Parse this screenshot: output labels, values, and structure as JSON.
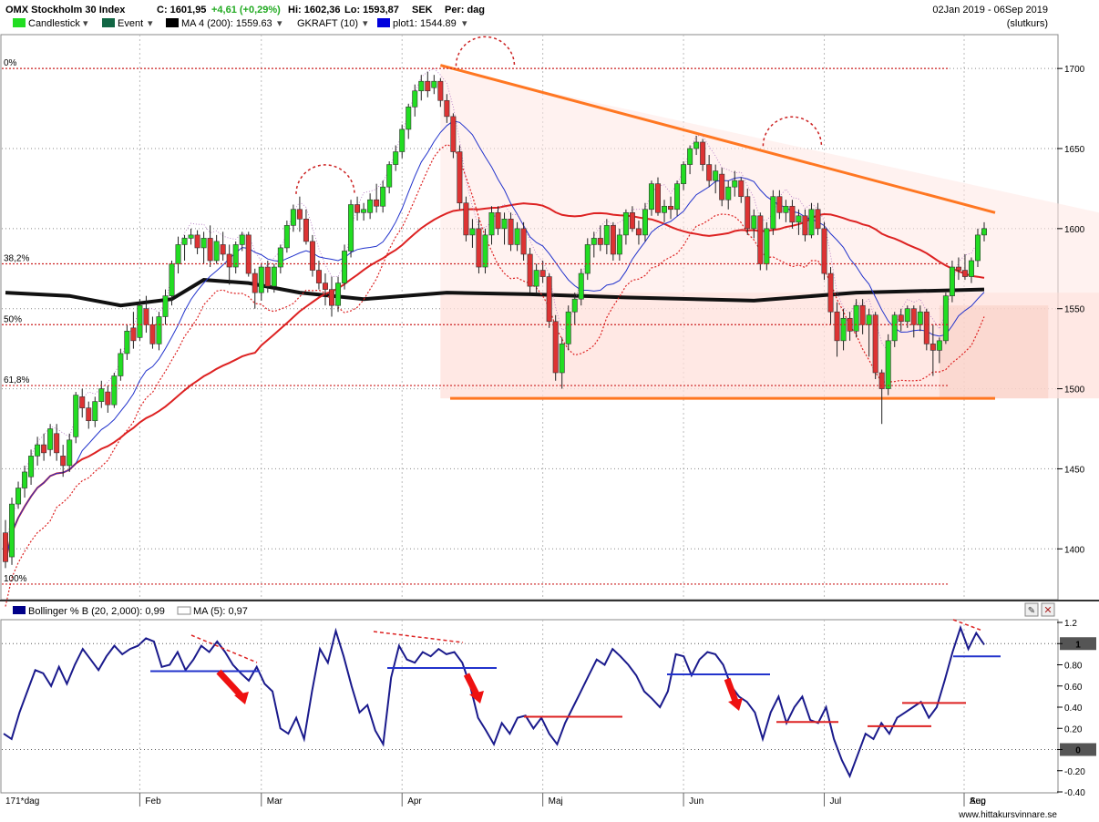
{
  "header": {
    "title": "OMX Stockholm 30 Index",
    "close": "C: 1601,95",
    "change": "+4,61 (+0,29%)",
    "high": "Hi: 1602,36",
    "low": "Lo: 1593,87",
    "currency": "SEK",
    "period": "Per: dag",
    "date_range": "02Jan 2019 - 06Sep 2019",
    "price_type": "(slutkurs)"
  },
  "legend": [
    {
      "label": "Candlestick",
      "color": "#22dd22"
    },
    {
      "label": "Event",
      "color": "#116644"
    },
    {
      "label": "MA 4 (200): 1559.63",
      "color": "#000000"
    },
    {
      "label": "GKRAFT (10)",
      "color": null
    },
    {
      "label": "plot1: 1544.89",
      "color": "#0000dd"
    }
  ],
  "fib_labels": [
    "0%",
    "38,2%",
    "50%",
    "61,8%",
    "100%"
  ],
  "price_axis": {
    "ticks": [
      "1700",
      "1650",
      "1600",
      "1550",
      "1500",
      "1450",
      "1400"
    ],
    "min": 1370,
    "max": 1720
  },
  "indicator": {
    "title": "Bollinger % B (20, 2,000): 0,99",
    "ma_label": "MA (5): 0,97",
    "ticks": [
      "1.2",
      "1",
      "0.80",
      "0.60",
      "0.40",
      "0.20",
      "0",
      "-0.20",
      "-0.40"
    ],
    "highlight_ticks": [
      "1",
      "0"
    ]
  },
  "time_axis": {
    "corner": "171*dag",
    "months": [
      "Feb",
      "Mar",
      "Apr",
      "Maj",
      "Jun",
      "Jul",
      "Aug",
      "Sep"
    ]
  },
  "watermark": "www.hittakursvinnare.se",
  "colors": {
    "up": "#22dd22",
    "down": "#dd3333",
    "ma200": "#111111",
    "ma_red": "#dd2222",
    "blue": "#2233cc",
    "trend": "#ff7722",
    "ind": "#1a1a8c"
  },
  "chart_data": {
    "type": "candlestick",
    "price_range": [
      1370,
      1720
    ],
    "fib_levels": [
      1700,
      1578,
      1540,
      1502,
      1378
    ],
    "support_level": 1494,
    "trendline": [
      [
        1,
        1702
      ],
      [
        171,
        1610
      ]
    ],
    "candles": [
      [
        1410,
        1418,
        1388,
        1392
      ],
      [
        1395,
        1432,
        1390,
        1428
      ],
      [
        1428,
        1442,
        1425,
        1438
      ],
      [
        1438,
        1452,
        1432,
        1448
      ],
      [
        1445,
        1462,
        1440,
        1458
      ],
      [
        1458,
        1470,
        1452,
        1465
      ],
      [
        1465,
        1472,
        1455,
        1460
      ],
      [
        1462,
        1478,
        1458,
        1475
      ],
      [
        1472,
        1478,
        1455,
        1460
      ],
      [
        1458,
        1465,
        1445,
        1452
      ],
      [
        1452,
        1472,
        1448,
        1468
      ],
      [
        1470,
        1498,
        1466,
        1496
      ],
      [
        1495,
        1500,
        1482,
        1488
      ],
      [
        1488,
        1492,
        1475,
        1480
      ],
      [
        1480,
        1495,
        1476,
        1492
      ],
      [
        1492,
        1505,
        1488,
        1500
      ],
      [
        1498,
        1502,
        1485,
        1490
      ],
      [
        1490,
        1510,
        1488,
        1508
      ],
      [
        1508,
        1525,
        1505,
        1522
      ],
      [
        1522,
        1540,
        1518,
        1536
      ],
      [
        1538,
        1548,
        1525,
        1530
      ],
      [
        1532,
        1556,
        1530,
        1552
      ],
      [
        1550,
        1558,
        1535,
        1540
      ],
      [
        1540,
        1545,
        1525,
        1528
      ],
      [
        1528,
        1548,
        1524,
        1545
      ],
      [
        1545,
        1562,
        1540,
        1558
      ],
      [
        1558,
        1580,
        1552,
        1578
      ],
      [
        1578,
        1595,
        1572,
        1590
      ],
      [
        1590,
        1596,
        1580,
        1594
      ],
      [
        1594,
        1600,
        1590,
        1596
      ],
      [
        1596,
        1599,
        1584,
        1588
      ],
      [
        1588,
        1598,
        1578,
        1594
      ],
      [
        1594,
        1602,
        1576,
        1580
      ],
      [
        1580,
        1596,
        1578,
        1592
      ],
      [
        1590,
        1598,
        1580,
        1584
      ],
      [
        1584,
        1590,
        1565,
        1576
      ],
      [
        1576,
        1592,
        1572,
        1590
      ],
      [
        1590,
        1598,
        1586,
        1596
      ],
      [
        1596,
        1598,
        1570,
        1572
      ],
      [
        1572,
        1575,
        1550,
        1560
      ],
      [
        1560,
        1578,
        1555,
        1576
      ],
      [
        1576,
        1580,
        1560,
        1564
      ],
      [
        1564,
        1578,
        1560,
        1576
      ],
      [
        1576,
        1590,
        1572,
        1588
      ],
      [
        1588,
        1605,
        1585,
        1602
      ],
      [
        1602,
        1615,
        1598,
        1612
      ],
      [
        1612,
        1620,
        1598,
        1606
      ],
      [
        1606,
        1612,
        1590,
        1592
      ],
      [
        1592,
        1596,
        1570,
        1574
      ],
      [
        1574,
        1580,
        1562,
        1566
      ],
      [
        1566,
        1572,
        1552,
        1562
      ],
      [
        1562,
        1570,
        1545,
        1552
      ],
      [
        1552,
        1570,
        1548,
        1566
      ],
      [
        1566,
        1590,
        1562,
        1586
      ],
      [
        1586,
        1618,
        1582,
        1615
      ],
      [
        1615,
        1620,
        1605,
        1610
      ],
      [
        1610,
        1616,
        1605,
        1612
      ],
      [
        1610,
        1622,
        1606,
        1618
      ],
      [
        1618,
        1628,
        1610,
        1614
      ],
      [
        1614,
        1630,
        1610,
        1626
      ],
      [
        1626,
        1642,
        1622,
        1640
      ],
      [
        1640,
        1652,
        1636,
        1648
      ],
      [
        1648,
        1665,
        1644,
        1662
      ],
      [
        1662,
        1678,
        1656,
        1676
      ],
      [
        1676,
        1690,
        1670,
        1686
      ],
      [
        1686,
        1696,
        1680,
        1692
      ],
      [
        1692,
        1698,
        1682,
        1686
      ],
      [
        1688,
        1696,
        1684,
        1692
      ],
      [
        1692,
        1694,
        1676,
        1680
      ],
      [
        1680,
        1684,
        1666,
        1670
      ],
      [
        1670,
        1672,
        1644,
        1648
      ],
      [
        1648,
        1652,
        1612,
        1616
      ],
      [
        1616,
        1620,
        1592,
        1596
      ],
      [
        1596,
        1606,
        1588,
        1600
      ],
      [
        1600,
        1606,
        1572,
        1576
      ],
      [
        1576,
        1600,
        1572,
        1596
      ],
      [
        1596,
        1614,
        1590,
        1610
      ],
      [
        1610,
        1614,
        1596,
        1600
      ],
      [
        1600,
        1610,
        1590,
        1606
      ],
      [
        1606,
        1610,
        1586,
        1590
      ],
      [
        1590,
        1604,
        1586,
        1600
      ],
      [
        1600,
        1604,
        1580,
        1584
      ],
      [
        1584,
        1588,
        1560,
        1564
      ],
      [
        1564,
        1578,
        1560,
        1574
      ],
      [
        1574,
        1580,
        1566,
        1570
      ],
      [
        1570,
        1572,
        1538,
        1542
      ],
      [
        1542,
        1546,
        1505,
        1510
      ],
      [
        1510,
        1532,
        1500,
        1528
      ],
      [
        1528,
        1552,
        1524,
        1548
      ],
      [
        1548,
        1560,
        1540,
        1556
      ],
      [
        1556,
        1575,
        1552,
        1572
      ],
      [
        1572,
        1594,
        1568,
        1590
      ],
      [
        1590,
        1598,
        1582,
        1594
      ],
      [
        1594,
        1602,
        1586,
        1590
      ],
      [
        1590,
        1606,
        1584,
        1602
      ],
      [
        1602,
        1604,
        1580,
        1584
      ],
      [
        1584,
        1600,
        1580,
        1596
      ],
      [
        1596,
        1612,
        1590,
        1610
      ],
      [
        1610,
        1614,
        1598,
        1600
      ],
      [
        1600,
        1605,
        1590,
        1596
      ],
      [
        1596,
        1616,
        1592,
        1612
      ],
      [
        1612,
        1630,
        1608,
        1628
      ],
      [
        1628,
        1632,
        1608,
        1610
      ],
      [
        1610,
        1618,
        1604,
        1614
      ],
      [
        1614,
        1620,
        1606,
        1612
      ],
      [
        1612,
        1630,
        1608,
        1628
      ],
      [
        1628,
        1642,
        1624,
        1640
      ],
      [
        1640,
        1652,
        1634,
        1650
      ],
      [
        1650,
        1658,
        1646,
        1654
      ],
      [
        1654,
        1656,
        1636,
        1640
      ],
      [
        1640,
        1646,
        1626,
        1630
      ],
      [
        1630,
        1640,
        1622,
        1636
      ],
      [
        1634,
        1638,
        1614,
        1618
      ],
      [
        1618,
        1630,
        1612,
        1626
      ],
      [
        1626,
        1636,
        1620,
        1630
      ],
      [
        1630,
        1632,
        1616,
        1620
      ],
      [
        1620,
        1625,
        1596,
        1600
      ],
      [
        1600,
        1612,
        1594,
        1608
      ],
      [
        1608,
        1610,
        1574,
        1578
      ],
      [
        1578,
        1604,
        1574,
        1600
      ],
      [
        1600,
        1624,
        1596,
        1620
      ],
      [
        1620,
        1624,
        1606,
        1610
      ],
      [
        1610,
        1618,
        1604,
        1614
      ],
      [
        1614,
        1618,
        1600,
        1604
      ],
      [
        1604,
        1612,
        1596,
        1608
      ],
      [
        1608,
        1612,
        1592,
        1596
      ],
      [
        1596,
        1616,
        1594,
        1612
      ],
      [
        1612,
        1616,
        1596,
        1600
      ],
      [
        1600,
        1604,
        1568,
        1572
      ],
      [
        1572,
        1576,
        1540,
        1548
      ],
      [
        1548,
        1554,
        1520,
        1530
      ],
      [
        1530,
        1550,
        1524,
        1544
      ],
      [
        1544,
        1548,
        1530,
        1536
      ],
      [
        1536,
        1556,
        1532,
        1552
      ],
      [
        1552,
        1556,
        1534,
        1540
      ],
      [
        1540,
        1550,
        1520,
        1546
      ],
      [
        1546,
        1548,
        1506,
        1510
      ],
      [
        1510,
        1512,
        1478,
        1500
      ],
      [
        1500,
        1534,
        1496,
        1530
      ],
      [
        1530,
        1548,
        1526,
        1546
      ],
      [
        1546,
        1550,
        1536,
        1542
      ],
      [
        1542,
        1552,
        1538,
        1550
      ],
      [
        1550,
        1552,
        1532,
        1540
      ],
      [
        1540,
        1552,
        1536,
        1548
      ],
      [
        1548,
        1550,
        1524,
        1528
      ],
      [
        1528,
        1540,
        1508,
        1524
      ],
      [
        1524,
        1532,
        1516,
        1530
      ],
      [
        1530,
        1560,
        1528,
        1558
      ],
      [
        1558,
        1580,
        1554,
        1576
      ],
      [
        1576,
        1582,
        1568,
        1574
      ],
      [
        1574,
        1584,
        1568,
        1570
      ],
      [
        1570,
        1582,
        1566,
        1580
      ],
      [
        1580,
        1600,
        1576,
        1596
      ],
      [
        1596,
        1604,
        1592,
        1600
      ]
    ],
    "moving_averages": [
      {
        "name": "MA 4 (200)",
        "values": [
          [
            1,
            1560
          ],
          [
            40,
            1558
          ],
          [
            70,
            1552
          ],
          [
            100,
            1556
          ],
          [
            120,
            1568
          ],
          [
            150,
            1566
          ],
          [
            180,
            1560
          ],
          [
            220,
            1556
          ],
          [
            270,
            1560
          ],
          [
            320,
            1559
          ],
          [
            380,
            1557
          ],
          [
            460,
            1555
          ],
          [
            520,
            1560
          ],
          [
            600,
            1562
          ]
        ]
      },
      {
        "name": "plot1",
        "values": [
          [
            1,
            1544.89
          ]
        ]
      }
    ],
    "indicator_values": [
      0.15,
      0.1,
      0.35,
      0.55,
      0.75,
      0.72,
      0.6,
      0.78,
      0.62,
      0.8,
      0.95,
      0.85,
      0.75,
      0.88,
      0.98,
      0.9,
      0.95,
      0.98,
      1.05,
      1.02,
      0.78,
      0.8,
      0.92,
      0.75,
      0.85,
      0.98,
      0.92,
      1.02,
      0.92,
      0.8,
      0.72,
      0.65,
      0.78,
      0.62,
      0.55,
      0.2,
      0.15,
      0.3,
      0.1,
      0.55,
      0.95,
      0.82,
      1.12,
      0.88,
      0.6,
      0.35,
      0.42,
      0.18,
      0.05,
      0.68,
      0.98,
      0.85,
      0.82,
      0.92,
      0.88,
      0.95,
      0.9,
      0.92,
      0.82,
      0.6,
      0.3,
      0.18,
      0.05,
      0.25,
      0.15,
      0.3,
      0.32,
      0.2,
      0.3,
      0.15,
      0.05,
      0.25,
      0.4,
      0.55,
      0.7,
      0.85,
      0.8,
      0.95,
      0.88,
      0.8,
      0.7,
      0.55,
      0.48,
      0.4,
      0.55,
      0.9,
      0.88,
      0.7,
      0.85,
      0.92,
      0.9,
      0.8,
      0.6,
      0.5,
      0.45,
      0.35,
      0.1,
      0.35,
      0.5,
      0.25,
      0.4,
      0.5,
      0.28,
      0.25,
      0.4,
      0.1,
      -0.1,
      -0.25,
      -0.05,
      0.15,
      0.1,
      0.25,
      0.15,
      0.3,
      0.35,
      0.4,
      0.45,
      0.3,
      0.4,
      0.65,
      0.92,
      1.15,
      0.95,
      1.1,
      0.99
    ]
  }
}
